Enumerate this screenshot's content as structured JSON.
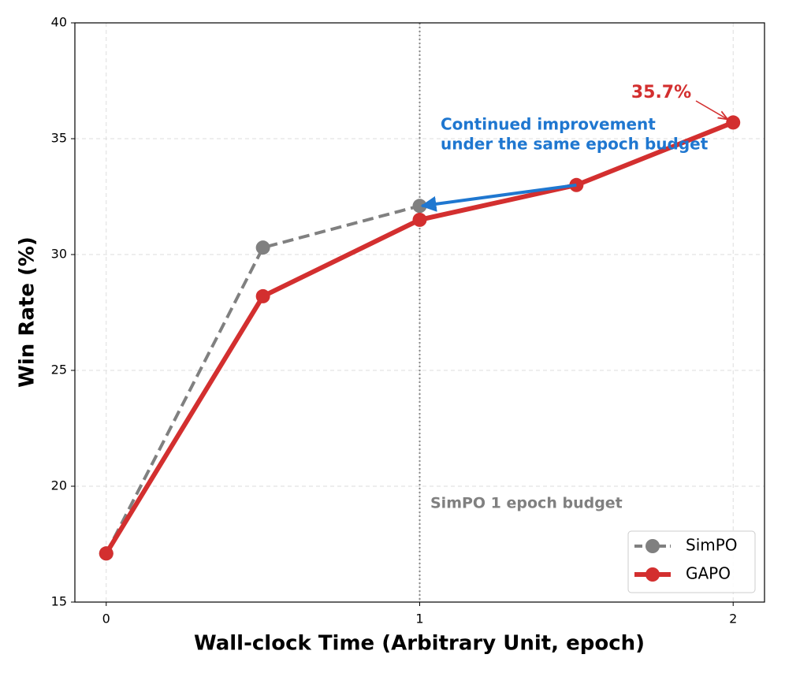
{
  "chart_data": {
    "type": "line",
    "xlabel": "Wall-clock Time (Arbitrary Unit, epoch)",
    "ylabel": "Win Rate (%)",
    "xlim": [
      -0.1,
      2.1
    ],
    "ylim": [
      15,
      40
    ],
    "xticks": [
      0,
      1,
      2
    ],
    "yticks": [
      15,
      20,
      25,
      30,
      35,
      40
    ],
    "grid": true,
    "legend": "lower right",
    "series": [
      {
        "name": "SimPO",
        "color": "#808080",
        "dash": true,
        "x": [
          0,
          0.5,
          1
        ],
        "values": [
          17.1,
          30.3,
          32.1
        ]
      },
      {
        "name": "GAPO",
        "color": "#d32f2f",
        "dash": false,
        "x": [
          0,
          0.5,
          1,
          1.5,
          2
        ],
        "values": [
          17.1,
          28.2,
          31.5,
          33.0,
          35.7
        ]
      }
    ],
    "vline": 1,
    "vline_label": "SimPO 1 epoch budget",
    "peak_label": "35.7%",
    "note_lines": [
      "Continued improvement",
      "under the same epoch budget"
    ]
  }
}
